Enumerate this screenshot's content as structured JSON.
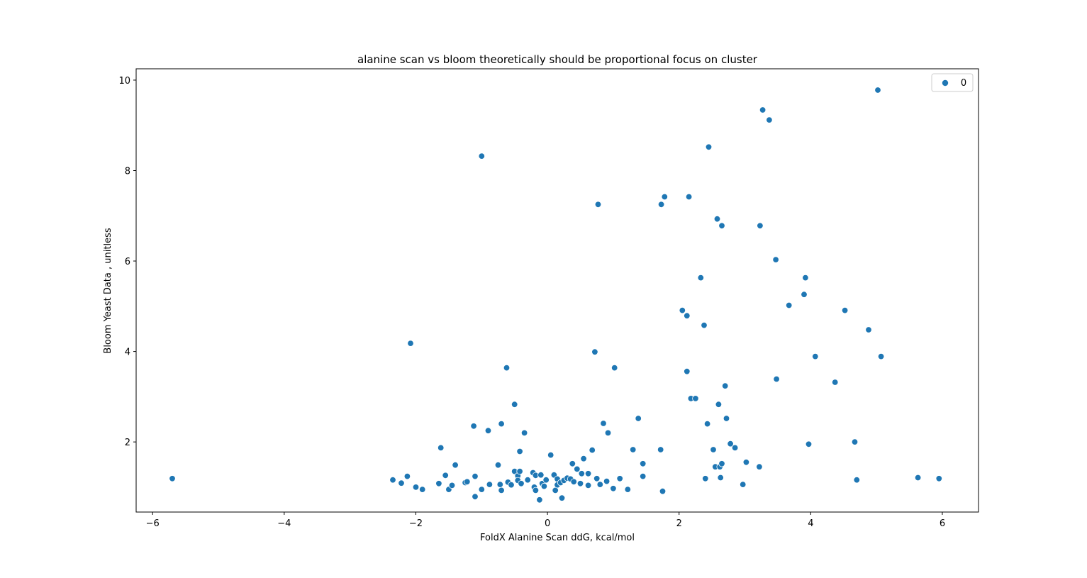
{
  "chart_data": {
    "type": "scatter",
    "title": "alanine scan vs bloom theoretically should be proportional focus on cluster",
    "xlabel": "FoldX Alanine Scan ddG, kcal/mol",
    "ylabel": "Bloom Yeast Data , unitless",
    "xlim": [
      -6.25,
      6.55
    ],
    "ylim": [
      0.45,
      10.25
    ],
    "xticks": [
      -6,
      -4,
      -2,
      0,
      2,
      4,
      6
    ],
    "yticks": [
      2,
      4,
      6,
      8,
      10
    ],
    "grid": false,
    "legend_position": "top-right",
    "series": [
      {
        "name": "0",
        "color": "#1f77b4",
        "points": [
          [
            -5.7,
            1.19
          ],
          [
            -2.35,
            1.16
          ],
          [
            -2.22,
            1.09
          ],
          [
            -2.13,
            1.24
          ],
          [
            -2.0,
            1.0
          ],
          [
            -1.9,
            0.95
          ],
          [
            -2.08,
            4.18
          ],
          [
            -1.62,
            1.87
          ],
          [
            -1.65,
            1.08
          ],
          [
            -1.55,
            1.26
          ],
          [
            -1.5,
            0.95
          ],
          [
            -1.45,
            1.04
          ],
          [
            -1.4,
            1.49
          ],
          [
            -1.25,
            1.1
          ],
          [
            -1.22,
            1.12
          ],
          [
            -1.12,
            2.35
          ],
          [
            -1.1,
            1.24
          ],
          [
            -1.1,
            0.79
          ],
          [
            -1.0,
            0.95
          ],
          [
            -1.0,
            8.32
          ],
          [
            -0.9,
            2.25
          ],
          [
            -0.88,
            1.06
          ],
          [
            -0.75,
            1.49
          ],
          [
            -0.72,
            1.06
          ],
          [
            -0.7,
            0.93
          ],
          [
            -0.7,
            2.4
          ],
          [
            -0.62,
            3.64
          ],
          [
            -0.6,
            1.11
          ],
          [
            -0.55,
            1.05
          ],
          [
            -0.5,
            2.83
          ],
          [
            -0.5,
            1.35
          ],
          [
            -0.45,
            1.25
          ],
          [
            -0.45,
            1.15
          ],
          [
            -0.42,
            1.35
          ],
          [
            -0.42,
            1.79
          ],
          [
            -0.4,
            1.08
          ],
          [
            -0.35,
            2.2
          ],
          [
            -0.3,
            1.16
          ],
          [
            -0.22,
            1.32
          ],
          [
            -0.2,
            1.0
          ],
          [
            -0.18,
            1.26
          ],
          [
            -0.18,
            0.93
          ],
          [
            -0.12,
            0.72
          ],
          [
            -0.1,
            1.27
          ],
          [
            -0.08,
            1.08
          ],
          [
            -0.05,
            1.02
          ],
          [
            -0.02,
            1.16
          ],
          [
            0.05,
            1.71
          ],
          [
            0.1,
            1.27
          ],
          [
            0.12,
            0.93
          ],
          [
            0.15,
            1.18
          ],
          [
            0.15,
            1.05
          ],
          [
            0.2,
            1.1
          ],
          [
            0.22,
            0.76
          ],
          [
            0.25,
            1.15
          ],
          [
            0.3,
            1.2
          ],
          [
            0.35,
            1.18
          ],
          [
            0.38,
            1.52
          ],
          [
            0.4,
            1.12
          ],
          [
            0.45,
            1.4
          ],
          [
            0.5,
            1.08
          ],
          [
            0.52,
            1.3
          ],
          [
            0.55,
            1.63
          ],
          [
            0.62,
            1.3
          ],
          [
            0.62,
            1.04
          ],
          [
            0.68,
            1.82
          ],
          [
            0.72,
            3.99
          ],
          [
            0.75,
            1.19
          ],
          [
            0.77,
            7.25
          ],
          [
            0.8,
            1.06
          ],
          [
            0.85,
            2.41
          ],
          [
            0.9,
            1.13
          ],
          [
            0.92,
            2.2
          ],
          [
            1.0,
            0.97
          ],
          [
            1.02,
            3.64
          ],
          [
            1.1,
            1.19
          ],
          [
            1.22,
            0.95
          ],
          [
            1.3,
            1.83
          ],
          [
            1.38,
            2.52
          ],
          [
            1.45,
            1.52
          ],
          [
            1.45,
            1.24
          ],
          [
            1.72,
            1.83
          ],
          [
            1.73,
            7.25
          ],
          [
            1.75,
            0.91
          ],
          [
            1.78,
            7.42
          ],
          [
            2.05,
            4.91
          ],
          [
            2.12,
            4.79
          ],
          [
            2.12,
            3.56
          ],
          [
            2.15,
            7.42
          ],
          [
            2.18,
            2.96
          ],
          [
            2.25,
            2.96
          ],
          [
            2.33,
            5.63
          ],
          [
            2.38,
            4.58
          ],
          [
            2.4,
            1.19
          ],
          [
            2.43,
            2.4
          ],
          [
            2.45,
            8.52
          ],
          [
            2.52,
            1.83
          ],
          [
            2.55,
            1.45
          ],
          [
            2.58,
            6.93
          ],
          [
            2.6,
            2.83
          ],
          [
            2.62,
            1.45
          ],
          [
            2.63,
            1.21
          ],
          [
            2.65,
            1.52
          ],
          [
            2.65,
            6.78
          ],
          [
            2.7,
            3.24
          ],
          [
            2.72,
            2.52
          ],
          [
            2.78,
            1.96
          ],
          [
            2.85,
            1.87
          ],
          [
            2.97,
            1.06
          ],
          [
            3.02,
            1.55
          ],
          [
            3.22,
            1.45
          ],
          [
            3.23,
            6.78
          ],
          [
            3.27,
            9.34
          ],
          [
            3.37,
            9.12
          ],
          [
            3.47,
            6.03
          ],
          [
            3.48,
            3.39
          ],
          [
            3.67,
            5.02
          ],
          [
            3.9,
            5.26
          ],
          [
            3.92,
            5.63
          ],
          [
            3.97,
            1.95
          ],
          [
            4.07,
            3.89
          ],
          [
            4.37,
            3.32
          ],
          [
            4.52,
            4.91
          ],
          [
            4.67,
            2.0
          ],
          [
            4.7,
            1.16
          ],
          [
            4.88,
            4.48
          ],
          [
            5.02,
            9.78
          ],
          [
            5.07,
            3.89
          ],
          [
            5.63,
            1.21
          ],
          [
            5.95,
            1.19
          ]
        ]
      }
    ]
  }
}
